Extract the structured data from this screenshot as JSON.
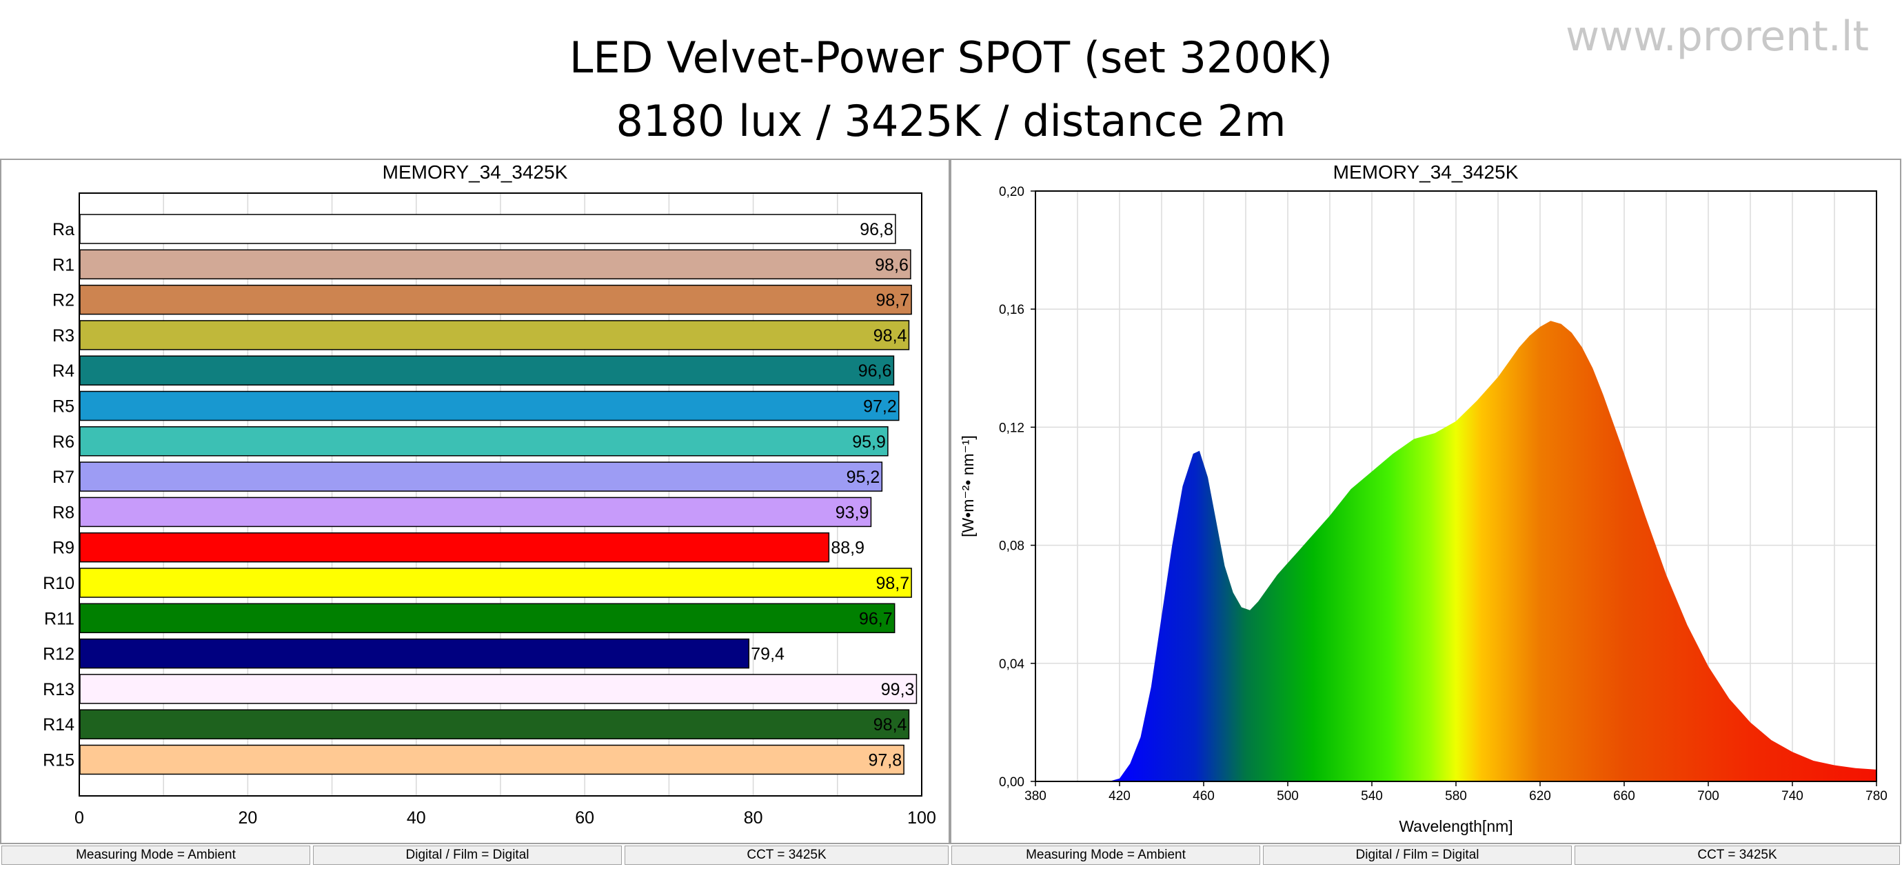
{
  "page": {
    "title_line1": "LED Velvet-Power SPOT (set 3200K)",
    "title_line2": "8180 lux / 3425K / distance 2m",
    "watermark": "www.prorent.lt"
  },
  "chart_data": [
    {
      "type": "bar",
      "orientation": "horizontal",
      "title": "MEMORY_34_3425K",
      "categories": [
        "Ra",
        "R1",
        "R2",
        "R3",
        "R4",
        "R5",
        "R6",
        "R7",
        "R8",
        "R9",
        "R10",
        "R11",
        "R12",
        "R13",
        "R14",
        "R15"
      ],
      "values": [
        96.8,
        98.6,
        98.7,
        98.4,
        96.6,
        97.2,
        95.9,
        95.2,
        93.9,
        88.9,
        98.7,
        96.7,
        79.4,
        99.3,
        98.4,
        97.8
      ],
      "value_labels": [
        "96,8",
        "98,6",
        "98,7",
        "98,4",
        "96,6",
        "97,2",
        "95,9",
        "95,2",
        "93,9",
        "88,9",
        "98,7",
        "96,7",
        "79,4",
        "99,3",
        "98,4",
        "97,8"
      ],
      "colors": [
        "#ffffff",
        "#d2a996",
        "#cd8450",
        "#c0b83a",
        "#0f7f7f",
        "#1898d0",
        "#3cc0b4",
        "#9d9cf4",
        "#c79bfa",
        "#ff0000",
        "#ffff00",
        "#008000",
        "#000080",
        "#fff0ff",
        "#1e621e",
        "#ffc993"
      ],
      "xlim": [
        0,
        100
      ],
      "xticks": [
        "0",
        "20",
        "40",
        "60",
        "80",
        "100"
      ],
      "grid": true
    },
    {
      "type": "area",
      "title": "MEMORY_34_3425K",
      "xlabel": "Wavelength[nm]",
      "ylabel": "[W•m⁻²• nm⁻¹]",
      "xlim": [
        380,
        780
      ],
      "ylim": [
        0,
        0.2
      ],
      "xticks": [
        "380",
        "420",
        "460",
        "500",
        "540",
        "580",
        "620",
        "660",
        "700",
        "740",
        "780"
      ],
      "yticks": [
        "0,00",
        "0,04",
        "0,08",
        "0,12",
        "0,16",
        "0,20"
      ],
      "grid": true,
      "fill": "visible spectrum gradient",
      "series": [
        {
          "x": [
            410,
            415,
            420,
            425,
            430,
            435,
            440,
            445,
            450,
            455,
            458,
            462,
            466,
            470,
            474,
            478,
            482,
            486,
            490,
            495,
            500,
            505,
            510,
            520,
            530,
            540,
            550,
            560,
            570,
            580,
            590,
            600,
            605,
            610,
            615,
            620,
            625,
            630,
            635,
            640,
            645,
            650,
            660,
            670,
            680,
            690,
            700,
            710,
            720,
            730,
            740,
            750,
            760,
            770,
            780
          ],
          "y": [
            0,
            0,
            0.001,
            0.006,
            0.015,
            0.032,
            0.056,
            0.08,
            0.1,
            0.111,
            0.112,
            0.103,
            0.088,
            0.073,
            0.064,
            0.059,
            0.058,
            0.061,
            0.065,
            0.07,
            0.074,
            0.078,
            0.082,
            0.09,
            0.099,
            0.105,
            0.111,
            0.116,
            0.118,
            0.122,
            0.129,
            0.137,
            0.142,
            0.147,
            0.151,
            0.154,
            0.156,
            0.155,
            0.152,
            0.147,
            0.14,
            0.131,
            0.111,
            0.09,
            0.07,
            0.053,
            0.039,
            0.028,
            0.02,
            0.014,
            0.01,
            0.007,
            0.0055,
            0.0045,
            0.004
          ]
        }
      ]
    }
  ],
  "status_bars": {
    "left": [
      "Measuring Mode = Ambient",
      "Digital / Film = Digital",
      "CCT = 3425K"
    ],
    "right": [
      "Measuring Mode = Ambient",
      "Digital / Film = Digital",
      "CCT = 3425K"
    ]
  }
}
